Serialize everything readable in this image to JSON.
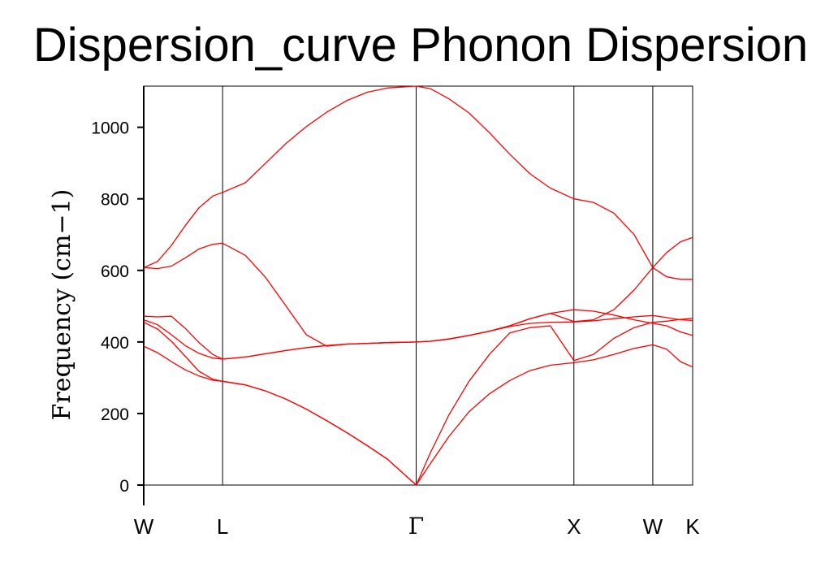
{
  "chart_data": {
    "type": "line",
    "title": "Dispersion_curve Phonon Dispersion",
    "xlabel": "",
    "ylabel": "Frequency (cm−1)",
    "ylim": [
      0,
      1115
    ],
    "yticks": [
      0,
      200,
      400,
      600,
      800,
      1000
    ],
    "grid": false,
    "xlim": [
      0,
      1
    ],
    "kpoints": [
      {
        "label": "W",
        "x": 0.0
      },
      {
        "label": "L",
        "x": 0.1437
      },
      {
        "label": "Γ",
        "x": 0.4963
      },
      {
        "label": "X",
        "x": 0.7837
      },
      {
        "label": "W",
        "x": 0.9274
      },
      {
        "label": "K",
        "x": 1.0
      }
    ],
    "line_color": "#ff0000",
    "series": [
      {
        "x": [
          0.0,
          0.0252,
          0.0504,
          0.0756,
          0.1007,
          0.1259,
          0.1437,
          0.1852,
          0.2222,
          0.2593,
          0.2963,
          0.3333,
          0.3704,
          0.4074,
          0.4444,
          0.4963,
          0.5222,
          0.5556,
          0.5926,
          0.6296,
          0.6667,
          0.7037,
          0.7407,
          0.7837,
          0.8193,
          0.8563,
          0.8933,
          0.9274,
          0.9526,
          0.9778,
          1.0
        ],
        "y": [
          388,
          370,
          345,
          322,
          305,
          293,
          290,
          280,
          263,
          240,
          212,
          180,
          146,
          110,
          72,
          0,
          60,
          135,
          205,
          255,
          292,
          320,
          335,
          342,
          350,
          365,
          382,
          392,
          380,
          345,
          330
        ]
      },
      {
        "x": [
          0.0,
          0.0252,
          0.0504,
          0.0756,
          0.1007,
          0.1259,
          0.1437,
          0.1852,
          0.2222,
          0.2593,
          0.2963,
          0.3333,
          0.3704,
          0.4074,
          0.4444,
          0.4963,
          0.5222,
          0.5556,
          0.5926,
          0.6296,
          0.6667,
          0.7037,
          0.7407,
          0.7837,
          0.8193,
          0.8563,
          0.8933,
          0.9274,
          0.9526,
          0.9778,
          1.0
        ],
        "y": [
          455,
          436,
          402,
          360,
          318,
          296,
          290,
          280,
          263,
          240,
          212,
          180,
          146,
          110,
          72,
          0,
          90,
          195,
          290,
          365,
          425,
          440,
          445,
          348,
          365,
          410,
          440,
          455,
          458,
          463,
          466
        ]
      },
      {
        "x": [
          0.0,
          0.0252,
          0.0504,
          0.0756,
          0.1007,
          0.1259,
          0.1437,
          0.1852,
          0.2222,
          0.2593,
          0.2963,
          0.3333,
          0.3704,
          0.4074,
          0.4444,
          0.4963,
          0.5222,
          0.5556,
          0.5926,
          0.6296,
          0.6667,
          0.7037,
          0.7407,
          0.7837,
          0.8193,
          0.8563,
          0.8933,
          0.9274,
          0.9526,
          0.9778,
          1.0
        ],
        "y": [
          462,
          448,
          420,
          390,
          368,
          355,
          352,
          358,
          367,
          376,
          384,
          390,
          394,
          396,
          398,
          400,
          402,
          408,
          418,
          430,
          443,
          452,
          455,
          456,
          459,
          465,
          470,
          474,
          468,
          462,
          460
        ]
      },
      {
        "x": [
          0.0,
          0.0252,
          0.0504,
          0.0756,
          0.1007,
          0.1259,
          0.1437,
          0.1852,
          0.2222,
          0.2593,
          0.2963,
          0.3333,
          0.3704,
          0.4074,
          0.4444,
          0.4963,
          0.5222,
          0.5556,
          0.5926,
          0.6296,
          0.6667,
          0.7037,
          0.7407,
          0.7837,
          0.8193,
          0.8563,
          0.8933,
          0.9274,
          0.9526,
          0.9778,
          1.0
        ],
        "y": [
          472,
          470,
          472,
          438,
          398,
          365,
          352,
          358,
          367,
          376,
          384,
          390,
          394,
          396,
          398,
          400,
          402,
          408,
          418,
          430,
          445,
          465,
          480,
          490,
          486,
          475,
          462,
          452,
          445,
          428,
          418
        ]
      },
      {
        "x": [
          0.0,
          0.0252,
          0.0504,
          0.0756,
          0.1007,
          0.1259,
          0.1437,
          0.1852,
          0.2222,
          0.2593,
          0.2963,
          0.3333,
          0.3704,
          0.4074,
          0.4444,
          0.4963,
          0.5222,
          0.5556,
          0.5926,
          0.6296,
          0.6667,
          0.7037,
          0.7407,
          0.7837,
          0.8193,
          0.8563,
          0.8933,
          0.9274,
          0.9526,
          0.9778,
          1.0
        ],
        "y": [
          608,
          605,
          612,
          635,
          660,
          673,
          676,
          642,
          580,
          500,
          420,
          388,
          394,
          396,
          398,
          400,
          402,
          408,
          418,
          430,
          445,
          465,
          480,
          457,
          462,
          490,
          545,
          608,
          650,
          680,
          692
        ]
      },
      {
        "x": [
          0.0,
          0.0252,
          0.0504,
          0.0756,
          0.1007,
          0.1259,
          0.1437,
          0.1852,
          0.2222,
          0.2593,
          0.2963,
          0.3333,
          0.3704,
          0.4074,
          0.4444,
          0.4963,
          0.5222,
          0.5556,
          0.5926,
          0.6296,
          0.6667,
          0.7037,
          0.7407,
          0.7837,
          0.8193,
          0.8563,
          0.8933,
          0.9274,
          0.9526,
          0.9778,
          1.0
        ],
        "y": [
          608,
          625,
          670,
          725,
          775,
          808,
          818,
          845,
          900,
          955,
          1002,
          1042,
          1075,
          1098,
          1110,
          1115,
          1108,
          1080,
          1040,
          985,
          925,
          870,
          830,
          800,
          790,
          760,
          700,
          608,
          582,
          575,
          575
        ]
      }
    ]
  }
}
